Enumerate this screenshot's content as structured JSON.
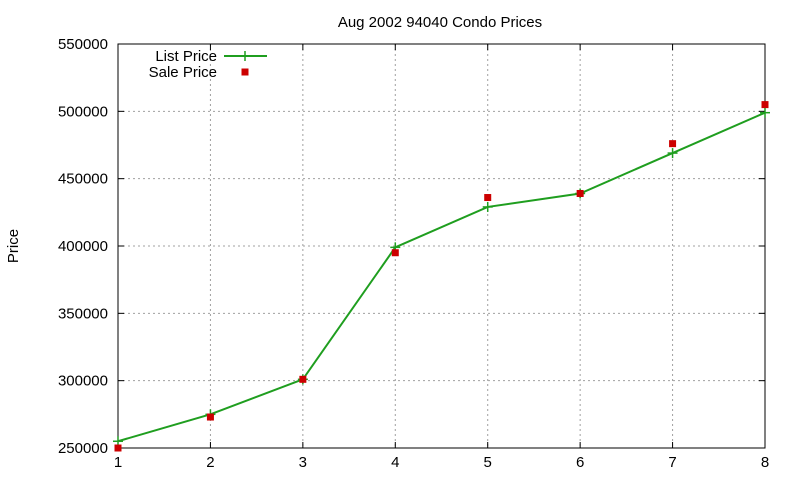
{
  "chart_data": {
    "type": "line",
    "title": "Aug 2002 94040 Condo Prices",
    "xlabel": "",
    "ylabel": "Price",
    "x": [
      1,
      2,
      3,
      4,
      5,
      6,
      7,
      8
    ],
    "xlim": [
      1,
      8
    ],
    "ylim": [
      250000,
      550000
    ],
    "xticks": [
      "1",
      "2",
      "3",
      "4",
      "5",
      "6",
      "7",
      "8"
    ],
    "yticks": [
      "250000",
      "300000",
      "350000",
      "400000",
      "450000",
      "500000",
      "550000"
    ],
    "grid": true,
    "legend_position": "top-left",
    "series": [
      {
        "name": "List Price",
        "style": "line-with-plus-markers",
        "color": "#1f9e1f",
        "values": [
          255000,
          275000,
          301000,
          399000,
          429000,
          439000,
          469000,
          499000
        ]
      },
      {
        "name": "Sale Price",
        "style": "square-markers",
        "color": "#cc0000",
        "values": [
          250000,
          273000,
          301000,
          395000,
          436000,
          439000,
          476000,
          505000
        ]
      }
    ]
  }
}
